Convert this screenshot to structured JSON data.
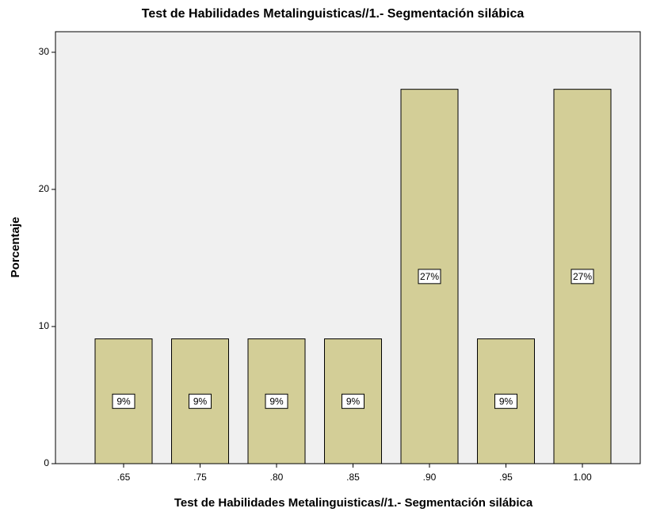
{
  "chart_data": {
    "type": "bar",
    "title": "Test de Habilidades Metalinguisticas//1.- Segmentación silábica",
    "x_label": "Test de Habilidades Metalinguisticas//1.- Segmentación silábica",
    "y_label": "Porcentaje",
    "categories": [
      ".65",
      ".75",
      ".80",
      ".85",
      ".90",
      ".95",
      "1.00"
    ],
    "values": [
      9.1,
      9.1,
      9.1,
      9.1,
      27.3,
      9.1,
      27.3
    ],
    "value_labels": [
      "9%",
      "9%",
      "9%",
      "9%",
      "27%",
      "9%",
      "27%"
    ],
    "color": "#d3ce97",
    "ylim": [
      0,
      31.5
    ],
    "yticks": [
      0,
      10,
      20,
      30
    ]
  }
}
